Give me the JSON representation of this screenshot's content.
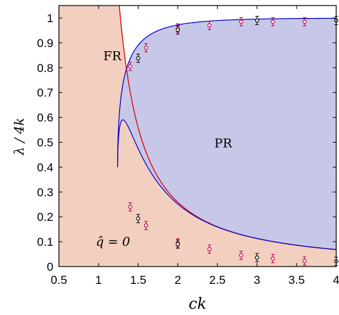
{
  "chart_data": {
    "type": "scatter",
    "title": "",
    "xlabel": "ck",
    "ylabel": "λ / 4k",
    "xlim": [
      0.5,
      4
    ],
    "ylim": [
      0,
      1.05
    ],
    "xticks": [
      "0.5",
      "1",
      "1.5",
      "2",
      "2.5",
      "3",
      "3.5",
      "4"
    ],
    "yticks": [
      "0",
      "0.1",
      "0.2",
      "0.3",
      "0.4",
      "0.5",
      "0.6",
      "0.7",
      "0.8",
      "0.9",
      "1"
    ],
    "regions": [
      {
        "label": "FR",
        "x": 0.95,
        "y": 0.845
      },
      {
        "label": "PR",
        "x": 2.6,
        "y": 0.5
      },
      {
        "label": "q̂ = 0",
        "x": 0.95,
        "y": 0.1
      }
    ],
    "colors": {
      "fr_fill": "#f2cfbf",
      "pr_fill": "#c7c8e8",
      "red_curve": "#e00000",
      "blue_curve": "#0000d0",
      "magenta_markers": "#c0004a",
      "black_markers": "#000000"
    },
    "series": [
      {
        "marker": "magenta",
        "points": [
          {
            "x": 1.4,
            "y": 0.805
          },
          {
            "x": 1.6,
            "y": 0.88
          },
          {
            "x": 2.0,
            "y": 0.96
          },
          {
            "x": 2.4,
            "y": 0.97
          },
          {
            "x": 2.8,
            "y": 0.985
          },
          {
            "x": 3.2,
            "y": 0.985
          },
          {
            "x": 3.6,
            "y": 0.985
          },
          {
            "x": 1.4,
            "y": 0.24
          },
          {
            "x": 1.6,
            "y": 0.165
          },
          {
            "x": 2.0,
            "y": 0.095
          },
          {
            "x": 2.4,
            "y": 0.07
          },
          {
            "x": 2.8,
            "y": 0.045
          },
          {
            "x": 3.2,
            "y": 0.032
          },
          {
            "x": 3.6,
            "y": 0.022
          }
        ]
      },
      {
        "marker": "black",
        "points": [
          {
            "x": 1.5,
            "y": 0.838
          },
          {
            "x": 2.0,
            "y": 0.952
          },
          {
            "x": 3.0,
            "y": 0.99
          },
          {
            "x": 4.0,
            "y": 0.99
          },
          {
            "x": 1.5,
            "y": 0.193
          },
          {
            "x": 2.0,
            "y": 0.09
          },
          {
            "x": 3.0,
            "y": 0.036
          },
          {
            "x": 4.0,
            "y": 0.021
          }
        ]
      }
    ]
  }
}
